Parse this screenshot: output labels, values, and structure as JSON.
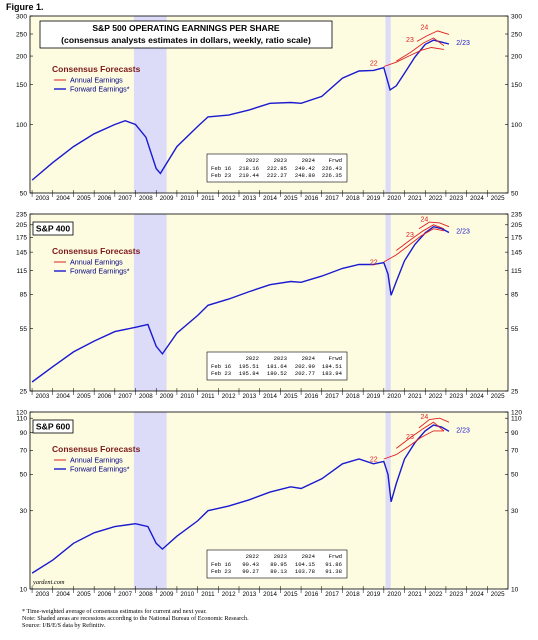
{
  "figure_label": "Figure 1.",
  "footnotes": [
    "* Time-weighted average of consensus estimates for current and next year.",
    "Note: Shaded areas are recessions according to the National Bureau of Economic Research.",
    "Source: I/B/E/S data by Refinitiv."
  ],
  "source_watermark": "yardeni.com",
  "colors": {
    "annual": "#e02020",
    "forward": "#1a1ad0",
    "plot_bg": "#fdfbe0",
    "recession": "#dcdcf8"
  },
  "chart_data": [
    {
      "type": "line",
      "title": "S&P 500 OPERATING EARNINGS PER SHARE",
      "subtitle": "(consensus analysts estimates in dollars, weekly, ratio scale)",
      "panel_label": "",
      "scale": "log",
      "ylim": [
        50,
        300
      ],
      "yticks": [
        50,
        100,
        150,
        200,
        250,
        300
      ],
      "xlim": [
        2002.9,
        2026
      ],
      "xticks": [
        "2003",
        "2004",
        "2005",
        "2006",
        "2007",
        "2008",
        "2009",
        "2010",
        "2011",
        "2012",
        "2013",
        "2014",
        "2015",
        "2016",
        "2017",
        "2018",
        "2019",
        "2020",
        "2021",
        "2022",
        "2023",
        "2024",
        "2025"
      ],
      "recessions": [
        [
          2007.92,
          2009.5
        ],
        [
          2020.08,
          2020.33
        ]
      ],
      "legend": {
        "title": "Consensus Forecasts",
        "items": [
          "Annual Earnings",
          "Forward Earnings*"
        ]
      },
      "series": [
        {
          "name": "Forward Earnings*",
          "color": "#1a1ad0",
          "x": [
            2003.0,
            2004.0,
            2005.0,
            2006.0,
            2007.0,
            2007.5,
            2008.0,
            2008.5,
            2009.0,
            2009.2,
            2010.0,
            2011.0,
            2011.5,
            2012.5,
            2013.5,
            2014.5,
            2015.5,
            2016.0,
            2017.0,
            2018.0,
            2018.8,
            2019.5,
            2020.0,
            2020.1,
            2020.3,
            2020.6,
            2021.0,
            2021.5,
            2022.0,
            2022.4,
            2022.8,
            2023.15
          ],
          "y": [
            57,
            68,
            80,
            91,
            100,
            104,
            100,
            88,
            64,
            61,
            80,
            98,
            108,
            110,
            116,
            124,
            125,
            124,
            133,
            160,
            172,
            173,
            178,
            165,
            142,
            148,
            168,
            198,
            225,
            235,
            230,
            226
          ]
        },
        {
          "name": "Annual Earnings",
          "color": "#e02020",
          "x": [
            2020.0,
            2020.6,
            2021.2,
            2021.8,
            2022.3,
            2022.9
          ],
          "y": [
            180,
            188,
            200,
            212,
            218,
            214
          ]
        },
        {
          "name": "Annual Earnings",
          "color": "#e02020",
          "x": [
            2020.6,
            2021.3,
            2021.9,
            2022.4,
            2022.9
          ],
          "y": [
            190,
            208,
            228,
            240,
            222
          ]
        },
        {
          "name": "Annual Earnings",
          "color": "#e02020",
          "x": [
            2021.6,
            2022.1,
            2022.6,
            2023.15
          ],
          "y": [
            232,
            246,
            258,
            249
          ]
        }
      ],
      "curve_markers": [
        {
          "label": "22",
          "x": 2019.7,
          "y": 182
        },
        {
          "label": "23",
          "x": 2021.45,
          "y": 230
        },
        {
          "label": "24",
          "x": 2022.15,
          "y": 262
        },
        {
          "label": "2/23",
          "x": 2023.5,
          "y": 224
        }
      ],
      "table": {
        "columns": [
          "",
          "2022",
          "2023",
          "2024",
          "Frwd"
        ],
        "rows": [
          [
            "Feb 16",
            "218.16",
            "222.85",
            "249.42",
            "226.43"
          ],
          [
            "Feb 23",
            "219.44",
            "222.27",
            "248.80",
            "226.35"
          ]
        ]
      }
    },
    {
      "type": "line",
      "title": "",
      "subtitle": "",
      "panel_label": "S&P 400",
      "scale": "log",
      "ylim": [
        25,
        235
      ],
      "yticks": [
        25,
        55,
        85,
        115,
        145,
        175,
        205,
        235
      ],
      "xlim": [
        2002.9,
        2026
      ],
      "xticks": [
        "2003",
        "2004",
        "2005",
        "2006",
        "2007",
        "2008",
        "2009",
        "2010",
        "2011",
        "2012",
        "2013",
        "2014",
        "2015",
        "2016",
        "2017",
        "2018",
        "2019",
        "2020",
        "2021",
        "2022",
        "2023",
        "2024",
        "2025"
      ],
      "recessions": [
        [
          2007.92,
          2009.5
        ],
        [
          2020.08,
          2020.33
        ]
      ],
      "legend": {
        "title": "Consensus Forecasts",
        "items": [
          "Annual Earnings",
          "Forward Earnings*"
        ]
      },
      "series": [
        {
          "name": "Forward Earnings*",
          "color": "#1a1ad0",
          "x": [
            2003.0,
            2004.0,
            2005.0,
            2006.0,
            2007.0,
            2008.0,
            2008.6,
            2009.0,
            2009.3,
            2010.0,
            2011.0,
            2011.5,
            2012.5,
            2013.5,
            2014.5,
            2015.5,
            2016.0,
            2017.0,
            2018.0,
            2018.8,
            2019.5,
            2020.0,
            2020.2,
            2020.35,
            2020.6,
            2021.0,
            2021.5,
            2022.0,
            2022.4,
            2022.8,
            2023.15
          ],
          "y": [
            28,
            34,
            41,
            47,
            53,
            56,
            58,
            44,
            40,
            52,
            65,
            74,
            80,
            88,
            96,
            100,
            99,
            107,
            118,
            124,
            124,
            127,
            110,
            84,
            100,
            130,
            160,
            185,
            200,
            195,
            186
          ]
        },
        {
          "name": "Annual Earnings",
          "color": "#e02020",
          "x": [
            2020.0,
            2020.6,
            2021.2,
            2021.8,
            2022.4,
            2022.9
          ],
          "y": [
            128,
            140,
            158,
            178,
            195,
            190
          ]
        },
        {
          "name": "Annual Earnings",
          "color": "#e02020",
          "x": [
            2020.6,
            2021.3,
            2021.9,
            2022.4,
            2022.9
          ],
          "y": [
            148,
            170,
            190,
            205,
            195
          ]
        },
        {
          "name": "Annual Earnings",
          "color": "#e02020",
          "x": [
            2021.7,
            2022.2,
            2022.7,
            2023.15
          ],
          "y": [
            195,
            212,
            210,
            200
          ]
        }
      ],
      "curve_markers": [
        {
          "label": "22",
          "x": 2019.7,
          "y": 124
        },
        {
          "label": "23",
          "x": 2021.45,
          "y": 176
        },
        {
          "label": "24",
          "x": 2022.15,
          "y": 214
        },
        {
          "label": "2/23",
          "x": 2023.5,
          "y": 184
        }
      ],
      "table": {
        "columns": [
          "",
          "2022",
          "2023",
          "2024",
          "Frwd"
        ],
        "rows": [
          [
            "Feb 16",
            "195.51",
            "181.64",
            "202.99",
            "184.51"
          ],
          [
            "Feb 23",
            "195.84",
            "180.52",
            "202.77",
            "183.94"
          ]
        ]
      }
    },
    {
      "type": "line",
      "title": "",
      "subtitle": "",
      "panel_label": "S&P 600",
      "scale": "log",
      "ylim": [
        10,
        120
      ],
      "yticks": [
        10,
        30,
        50,
        70,
        90,
        110,
        120
      ],
      "xlim": [
        2002.9,
        2026
      ],
      "xticks": [
        "2003",
        "2004",
        "2005",
        "2006",
        "2007",
        "2008",
        "2009",
        "2010",
        "2011",
        "2012",
        "2013",
        "2014",
        "2015",
        "2016",
        "2017",
        "2018",
        "2019",
        "2020",
        "2021",
        "2022",
        "2023",
        "2024",
        "2025"
      ],
      "recessions": [
        [
          2007.92,
          2009.5
        ],
        [
          2020.08,
          2020.33
        ]
      ],
      "legend": {
        "title": "Consensus Forecasts",
        "items": [
          "Annual Earnings",
          "Forward Earnings*"
        ]
      },
      "series": [
        {
          "name": "Forward Earnings*",
          "color": "#1a1ad0",
          "x": [
            2003.0,
            2004.0,
            2005.0,
            2006.0,
            2007.0,
            2008.0,
            2008.6,
            2009.0,
            2009.3,
            2010.0,
            2011.0,
            2011.5,
            2012.5,
            2013.5,
            2014.5,
            2015.5,
            2016.0,
            2017.0,
            2018.0,
            2018.8,
            2019.5,
            2020.0,
            2020.2,
            2020.35,
            2020.6,
            2021.0,
            2021.5,
            2022.0,
            2022.4,
            2022.8,
            2023.15
          ],
          "y": [
            12.5,
            15,
            19,
            22,
            24,
            25,
            24,
            19,
            17.5,
            21,
            26,
            30,
            32,
            35,
            39,
            42,
            41,
            47,
            58,
            62,
            58,
            60,
            50,
            34,
            44,
            62,
            78,
            92,
            100,
            97,
            91.5
          ]
        },
        {
          "name": "Annual Earnings",
          "color": "#e02020",
          "x": [
            2020.0,
            2020.6,
            2021.2,
            2021.8,
            2022.4,
            2022.9
          ],
          "y": [
            62,
            66,
            74,
            84,
            92,
            92
          ]
        },
        {
          "name": "Annual Earnings",
          "color": "#e02020",
          "x": [
            2020.6,
            2021.3,
            2021.9,
            2022.4,
            2022.9
          ],
          "y": [
            72,
            84,
            95,
            104,
            92
          ]
        },
        {
          "name": "Annual Earnings",
          "color": "#e02020",
          "x": [
            2021.7,
            2022.2,
            2022.7,
            2023.15
          ],
          "y": [
            96,
            108,
            110,
            104
          ]
        }
      ],
      "curve_markers": [
        {
          "label": "22",
          "x": 2019.7,
          "y": 60
        },
        {
          "label": "23",
          "x": 2021.45,
          "y": 82
        },
        {
          "label": "24",
          "x": 2022.15,
          "y": 109
        },
        {
          "label": "2/23",
          "x": 2023.5,
          "y": 90
        }
      ],
      "table": {
        "columns": [
          "",
          "2022",
          "2023",
          "2024",
          "Frwd"
        ],
        "rows": [
          [
            "Feb 16",
            "90.43",
            "89.95",
            "104.15",
            "91.86"
          ],
          [
            "Feb 23",
            "90.27",
            "89.13",
            "103.78",
            "91.38"
          ]
        ]
      }
    }
  ]
}
